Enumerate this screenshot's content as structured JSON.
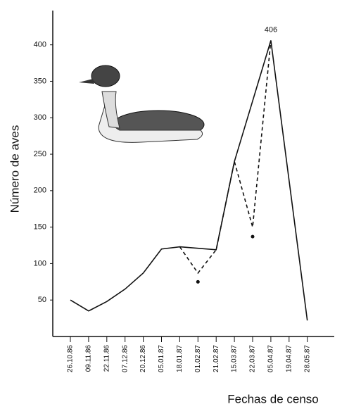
{
  "chart_data": {
    "type": "line",
    "y_label": "Número de aves",
    "x_label": "Fechas de censo",
    "annotation": {
      "text": "406",
      "category": "05.04.87",
      "value": 406
    },
    "categories": [
      "26.10.86",
      "09.11.86",
      "22.11.86",
      "07.12.86",
      "20.12.86",
      "05.01.87",
      "18.01.87",
      "01.02.87",
      "21.02.87",
      "15.03.87",
      "22.03.87",
      "05.04.87",
      "19.04.87",
      "28.05.87"
    ],
    "series": [
      {
        "style": "solid",
        "color": "#111111",
        "values": [
          50,
          35,
          48,
          65,
          87,
          120,
          123,
          121,
          119,
          240,
          323,
          406,
          214,
          22
        ]
      },
      {
        "style": "dashed",
        "color": "#111111",
        "values": [
          null,
          null,
          null,
          null,
          null,
          null,
          123,
          87,
          119,
          240,
          150,
          406,
          null,
          null
        ]
      },
      {
        "style": "dots",
        "color": "#111111",
        "values": [
          null,
          null,
          null,
          null,
          null,
          null,
          null,
          75,
          null,
          null,
          137,
          null,
          null,
          null
        ]
      }
    ],
    "ylim": [
      0,
      447
    ],
    "yticks": [
      50,
      100,
      150,
      200,
      250,
      300,
      350,
      400
    ],
    "grid": false
  }
}
